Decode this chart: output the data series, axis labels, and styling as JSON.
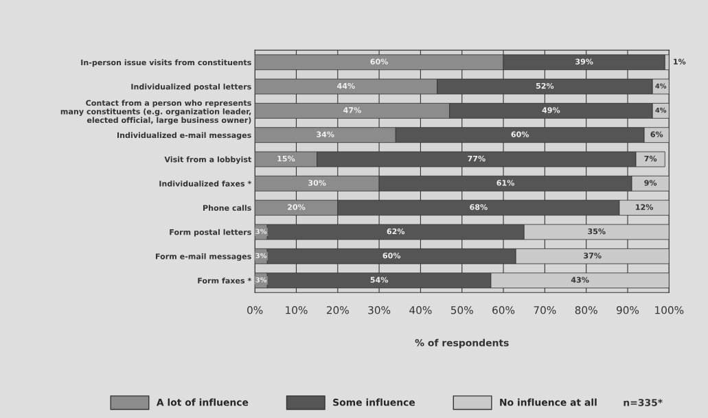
{
  "chart_data": {
    "type": "bar",
    "orientation": "horizontal",
    "stacked": true,
    "categories": [
      "In-person issue visits from constituents",
      "Individualized postal letters",
      "Contact from a person who represents\nmany constituents (e.g. organization leader,\nelected official, large business owner)",
      "Individualized e-mail messages",
      "Visit from a lobbyist",
      "Individualized faxes *",
      "Phone calls",
      "Form postal letters",
      "Form e-mail messages",
      "Form faxes *"
    ],
    "series": [
      {
        "name": "A lot of influence",
        "color": "#8c8c8c",
        "values": [
          60,
          44,
          47,
          34,
          15,
          30,
          20,
          3,
          3,
          3
        ],
        "value_labels": [
          "60%",
          "44%",
          "47%",
          "34%",
          "15%",
          "30%",
          "20%",
          "3%",
          "3%",
          "3%"
        ]
      },
      {
        "name": "Some influence",
        "color": "#555555",
        "values": [
          39,
          52,
          49,
          60,
          77,
          61,
          68,
          62,
          60,
          54
        ],
        "value_labels": [
          "39%",
          "52%",
          "49%",
          "60%",
          "77%",
          "61%",
          "68%",
          "62%",
          "60%",
          "54%"
        ]
      },
      {
        "name": "No influence at all",
        "color": "#cacaca",
        "values": [
          1,
          4,
          4,
          6,
          7,
          9,
          12,
          35,
          37,
          43
        ],
        "value_labels": [
          "1%",
          "4%",
          "4%",
          "6%",
          "7%",
          "9%",
          "12%",
          "35%",
          "37%",
          "43%"
        ]
      }
    ],
    "xlim": [
      0,
      100
    ],
    "xticks": [
      {
        "value": 0,
        "label": "0%"
      },
      {
        "value": 10,
        "label": "10%"
      },
      {
        "value": 20,
        "label": "20%"
      },
      {
        "value": 30,
        "label": "30%"
      },
      {
        "value": 40,
        "label": "40%"
      },
      {
        "value": 50,
        "label": "50%"
      },
      {
        "value": 60,
        "label": "60%"
      },
      {
        "value": 70,
        "label": "70%"
      },
      {
        "value": 80,
        "label": "80%"
      },
      {
        "value": 90,
        "label": "90%"
      },
      {
        "value": 100,
        "label": "100%"
      }
    ],
    "xlabel": "% of respondents",
    "grid": "x",
    "legend": "bottom",
    "annotations": [
      "n=335*"
    ]
  }
}
